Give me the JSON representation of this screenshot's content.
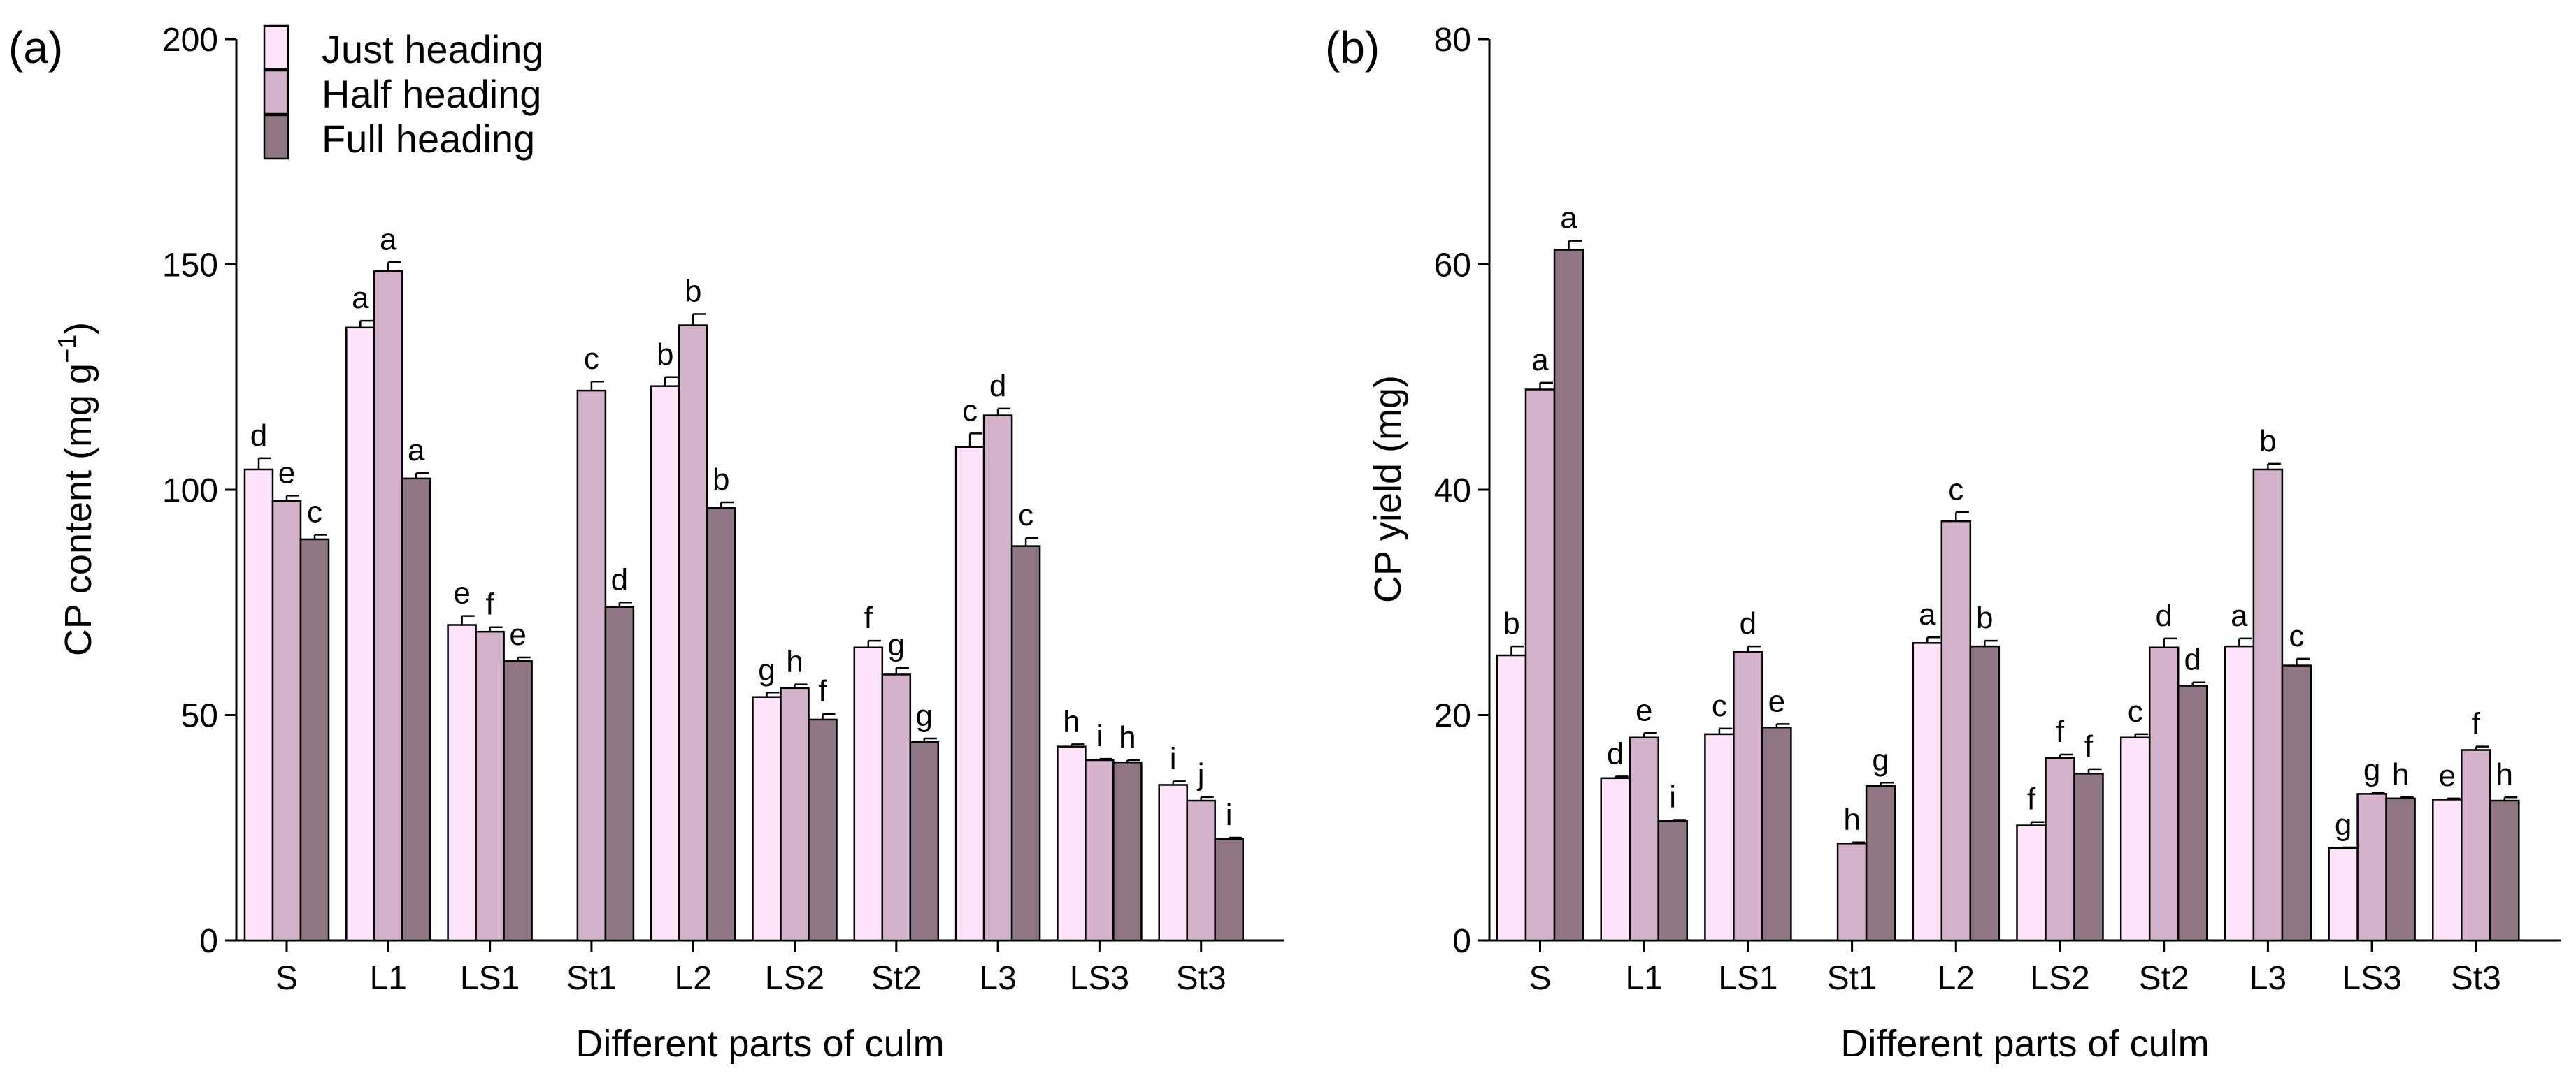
{
  "colors": {
    "just": "#fde4fa",
    "half": "#d4b2cc",
    "full": "#8e7685"
  },
  "legend": {
    "items": [
      {
        "label": "Just heading",
        "color": "#fde4fa"
      },
      {
        "label": "Half heading",
        "color": "#d4b2cc"
      },
      {
        "label": "Full heading",
        "color": "#8e7685"
      }
    ]
  },
  "chart_data": [
    {
      "panel": "(a)",
      "type": "bar",
      "title": "",
      "xlabel": "Different parts of culm",
      "ylabel": "CP content (mg g",
      "ylabel_sup": "−1",
      "ylabel_end": ")",
      "ylim": [
        0,
        200
      ],
      "yticks": [
        0,
        50,
        100,
        150,
        200
      ],
      "categories": [
        "S",
        "L1",
        "LS1",
        "St1",
        "L2",
        "LS2",
        "St2",
        "L3",
        "LS3",
        "St3"
      ],
      "series": [
        {
          "name": "Just heading",
          "values": [
            104.5,
            136,
            70,
            null,
            123,
            54,
            65,
            109.5,
            43,
            34.5
          ],
          "errors": [
            2.5,
            1.5,
            2,
            null,
            2,
            1,
            1.5,
            3,
            0.5,
            0.8
          ],
          "labels": [
            "d",
            "a",
            "e",
            "",
            "b",
            "g",
            "f",
            "c",
            "h",
            "i"
          ]
        },
        {
          "name": "Half heading",
          "values": [
            97.5,
            148.5,
            68.5,
            122,
            136.5,
            56,
            59,
            116.5,
            40,
            31
          ],
          "errors": [
            1.2,
            2,
            1,
            2,
            2.5,
            0.8,
            1.5,
            1.5,
            0.3,
            0.8
          ],
          "labels": [
            "e",
            "a",
            "f",
            "c",
            "b",
            "h",
            "g",
            "d",
            "i",
            "j"
          ]
        },
        {
          "name": "Full heading",
          "values": [
            89,
            102.5,
            62,
            74,
            96,
            49,
            44,
            87.5,
            39.5,
            22.5
          ],
          "errors": [
            1,
            1.2,
            0.8,
            1,
            1.2,
            1.2,
            0.8,
            1.8,
            0.5,
            0.3
          ],
          "labels": [
            "c",
            "a",
            "e",
            "d",
            "b",
            "f",
            "g",
            "c",
            "h",
            "i"
          ]
        }
      ]
    },
    {
      "panel": "(b)",
      "type": "bar",
      "title": "",
      "xlabel": "Different parts of culm",
      "ylabel": "CP yield (mg)",
      "ylim": [
        0,
        80
      ],
      "yticks": [
        0,
        20,
        40,
        60,
        80
      ],
      "categories": [
        "S",
        "L1",
        "LS1",
        "St1",
        "L2",
        "LS2",
        "St2",
        "L3",
        "LS3",
        "St3"
      ],
      "series": [
        {
          "name": "Just heading",
          "values": [
            25.3,
            14.4,
            18.3,
            null,
            26.4,
            10.2,
            18,
            26.1,
            8.2,
            12.5
          ],
          "errors": [
            0.8,
            0.15,
            0.5,
            null,
            0.5,
            0.3,
            0.3,
            0.7,
            0.05,
            0.1
          ],
          "labels": [
            "b",
            "d",
            "c",
            "",
            "a",
            "f",
            "c",
            "a",
            "g",
            "e"
          ]
        },
        {
          "name": "Half heading",
          "values": [
            48.9,
            18,
            25.6,
            8.6,
            37.2,
            16.2,
            26,
            41.8,
            13,
            16.9
          ],
          "errors": [
            0.6,
            0.4,
            0.5,
            0.1,
            0.8,
            0.3,
            0.8,
            0.5,
            0.1,
            0.3
          ],
          "labels": [
            "a",
            "e",
            "d",
            "h",
            "c",
            "f",
            "d",
            "b",
            "g",
            "f"
          ]
        },
        {
          "name": "Full heading",
          "values": [
            61.3,
            10.6,
            18.9,
            13.7,
            26.1,
            14.8,
            22.6,
            24.4,
            12.6,
            12.4
          ],
          "errors": [
            0.8,
            0.1,
            0.3,
            0.3,
            0.5,
            0.4,
            0.3,
            0.6,
            0.1,
            0.3
          ],
          "labels": [
            "a",
            "i",
            "e",
            "g",
            "b",
            "f",
            "d",
            "c",
            "h",
            "h"
          ]
        }
      ]
    }
  ]
}
